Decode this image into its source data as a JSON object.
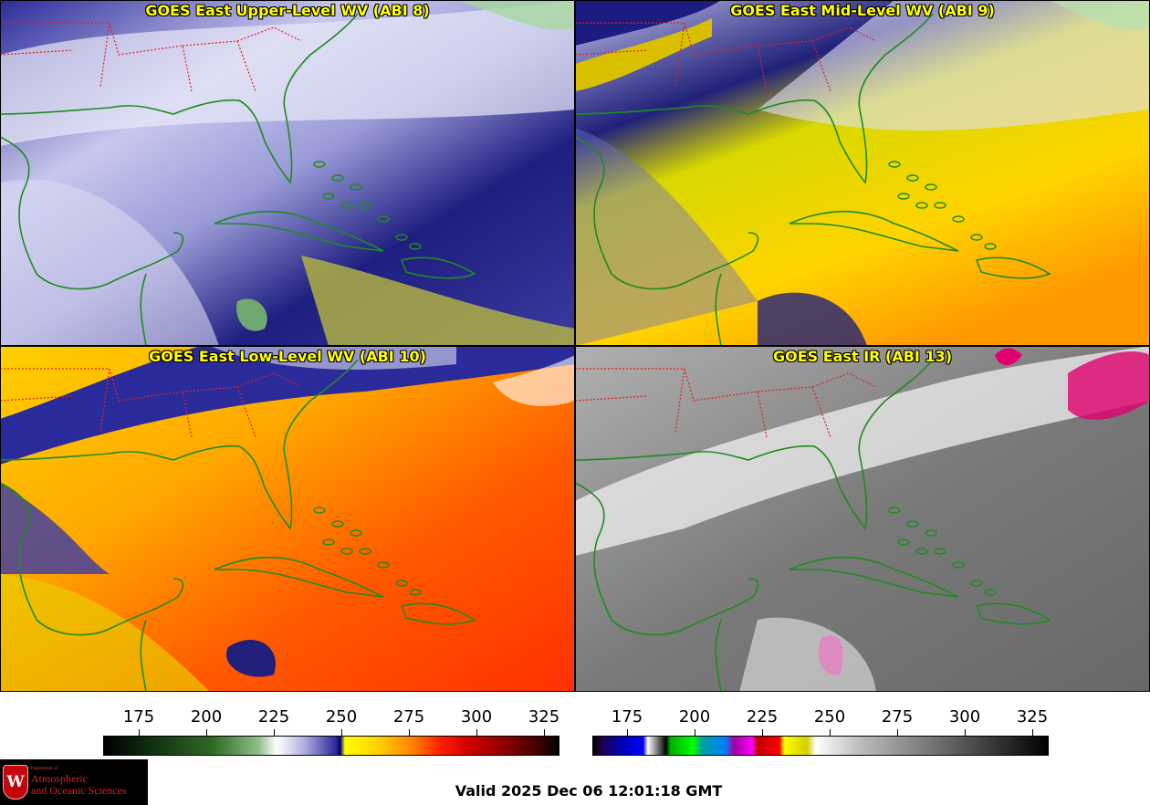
{
  "panels": [
    {
      "title": "GOES East Upper-Level WV (ABI 8)",
      "band": "ABI 8",
      "palette": "wv"
    },
    {
      "title": "GOES East Mid-Level WV (ABI 9)",
      "band": "ABI 9",
      "palette": "wv"
    },
    {
      "title": "GOES East Low-Level WV (ABI 10)",
      "band": "ABI 10",
      "palette": "wv"
    },
    {
      "title": "GOES East IR (ABI 13)",
      "band": "ABI 13",
      "palette": "ir"
    }
  ],
  "colorbars": {
    "wv": {
      "ticks": [
        "175",
        "200",
        "225",
        "250",
        "275",
        "300",
        "325"
      ]
    },
    "ir": {
      "ticks": [
        "175",
        "200",
        "225",
        "250",
        "275",
        "300",
        "325"
      ]
    }
  },
  "logo": {
    "line1": "Department of",
    "line2": "Atmospheric",
    "line3": "and Oceanic Sciences",
    "crest_letter": "W"
  },
  "valid_time": "Valid 2025 Dec 06 12:01:18 GMT",
  "colors": {
    "title_text": "#ffff00",
    "coastline": "#1e8c1e",
    "state_borders": "#e02020",
    "wv_dry": "#ffcc00",
    "wv_moist": "#1a1a8c",
    "ir_cold_tops": "#e0006e"
  }
}
